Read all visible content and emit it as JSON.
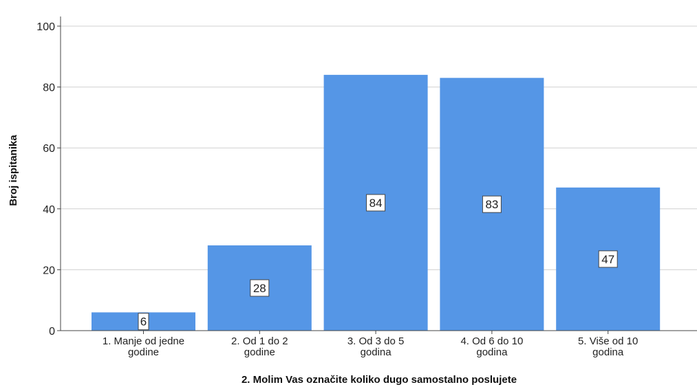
{
  "chart_data": {
    "type": "bar",
    "categories": [
      [
        "1. Manje od jedne",
        "godine"
      ],
      [
        "2. Od 1 do 2",
        "godine"
      ],
      [
        "3. Od 3 do 5",
        "godina"
      ],
      [
        "4. Od 6 do 10",
        "godina"
      ],
      [
        "5. Više od 10",
        "godina"
      ]
    ],
    "values": [
      6,
      28,
      84,
      83,
      47
    ],
    "data_labels": [
      "6",
      "28",
      "84",
      "83",
      "47"
    ],
    "xlabel": "2. Molim Vas označite koliko dugo samostalno poslujete",
    "ylabel": "Broj ispitanika",
    "ylim": [
      0,
      100
    ],
    "yticks": [
      0,
      20,
      40,
      60,
      80,
      100
    ],
    "grid": true,
    "colors": {
      "bar": "#5596e6",
      "grid": "#d0d0d0",
      "axis": "#444444"
    }
  }
}
